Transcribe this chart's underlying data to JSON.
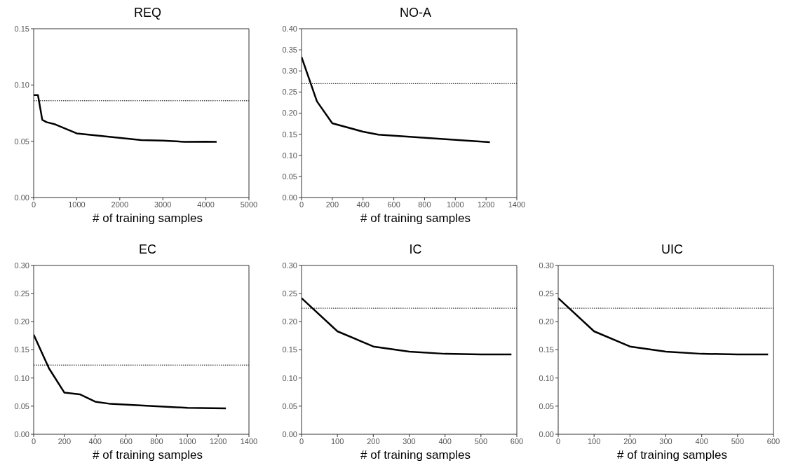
{
  "chart_data": [
    {
      "type": "line",
      "title": "REQ",
      "xlabel": "# of training samples",
      "xlim": [
        0,
        5000
      ],
      "xticks": [
        0,
        1000,
        2000,
        3000,
        4000,
        5000
      ],
      "ylim": [
        0,
        0.15
      ],
      "yticks": [
        {
          "value": 0,
          "label": "0.00"
        },
        {
          "value": 0.05,
          "label": "0.05"
        },
        {
          "value": 0.1,
          "label": "0.10"
        },
        {
          "value": 0.15,
          "label": "0.15"
        }
      ],
      "series": [
        {
          "color": "#000000",
          "x": [
            0,
            100,
            200,
            300,
            500,
            1000,
            2500,
            3000,
            3500,
            4000,
            4250
          ],
          "values": [
            0.091,
            0.091,
            0.069,
            0.067,
            0.065,
            0.057,
            0.051,
            0.0505,
            0.0495,
            0.0497,
            0.0495
          ]
        }
      ],
      "ref_lines": [
        {
          "axis": "y",
          "value": 0.086,
          "color": "#000000",
          "line_style": "dotted"
        }
      ]
    },
    {
      "type": "line",
      "title": "NO-A",
      "xlabel": "# of training samples",
      "xlim": [
        0,
        1400
      ],
      "xticks": [
        0,
        200,
        400,
        600,
        800,
        1000,
        1200,
        1400
      ],
      "ylim": [
        0,
        0.4
      ],
      "yticks": [
        {
          "value": 0,
          "label": "0.00"
        },
        {
          "value": 0.05,
          "label": "0.05"
        },
        {
          "value": 0.1,
          "label": "0.10"
        },
        {
          "value": 0.15,
          "label": "0.15"
        },
        {
          "value": 0.2,
          "label": "0.20"
        },
        {
          "value": 0.25,
          "label": "0.25"
        },
        {
          "value": 0.3,
          "label": "0.30"
        },
        {
          "value": 0.35,
          "label": "0.35"
        },
        {
          "value": 0.4,
          "label": "0.40"
        }
      ],
      "series": [
        {
          "color": "#000000",
          "x": [
            0,
            100,
            200,
            400,
            500,
            1225
          ],
          "values": [
            0.333,
            0.228,
            0.176,
            0.156,
            0.149,
            0.131
          ]
        }
      ],
      "ref_lines": [
        {
          "axis": "y",
          "value": 0.27,
          "color": "#000000",
          "line_style": "dotted"
        }
      ]
    },
    {
      "type": "line",
      "title": "EC",
      "xlabel": "# of training samples",
      "xlim": [
        0,
        1400
      ],
      "xticks": [
        0,
        200,
        400,
        600,
        800,
        1000,
        1200,
        1400
      ],
      "ylim": [
        0,
        0.3
      ],
      "yticks": [
        {
          "value": 0,
          "label": "0.00"
        },
        {
          "value": 0.05,
          "label": "0.05"
        },
        {
          "value": 0.1,
          "label": "0.10"
        },
        {
          "value": 0.15,
          "label": "0.15"
        },
        {
          "value": 0.2,
          "label": "0.20"
        },
        {
          "value": 0.25,
          "label": "0.25"
        },
        {
          "value": 0.3,
          "label": "0.30"
        }
      ],
      "series": [
        {
          "color": "#000000",
          "x": [
            0,
            100,
            200,
            300,
            400,
            500,
            1000,
            1250
          ],
          "values": [
            0.177,
            0.117,
            0.074,
            0.071,
            0.058,
            0.054,
            0.047,
            0.046
          ]
        }
      ],
      "ref_lines": [
        {
          "axis": "y",
          "value": 0.123,
          "color": "#000000",
          "line_style": "dotted"
        }
      ]
    },
    {
      "type": "line",
      "title": "IC",
      "xlabel": "# of training samples",
      "xlim": [
        0,
        600
      ],
      "xticks": [
        0,
        100,
        200,
        300,
        400,
        500,
        600
      ],
      "ylim": [
        0,
        0.3
      ],
      "yticks": [
        {
          "value": 0,
          "label": "0.00"
        },
        {
          "value": 0.05,
          "label": "0.05"
        },
        {
          "value": 0.1,
          "label": "0.10"
        },
        {
          "value": 0.15,
          "label": "0.15"
        },
        {
          "value": 0.2,
          "label": "0.20"
        },
        {
          "value": 0.25,
          "label": "0.25"
        },
        {
          "value": 0.3,
          "label": "0.30"
        }
      ],
      "series": [
        {
          "color": "#000000",
          "x": [
            0,
            100,
            200,
            300,
            400,
            500,
            585
          ],
          "values": [
            0.242,
            0.183,
            0.156,
            0.147,
            0.143,
            0.142,
            0.142
          ]
        }
      ],
      "ref_lines": [
        {
          "axis": "y",
          "value": 0.224,
          "color": "#000000",
          "line_style": "dotted"
        }
      ]
    },
    {
      "type": "line",
      "title": "UIC",
      "xlabel": "# of training samples",
      "xlim": [
        0,
        600
      ],
      "xticks": [
        0,
        100,
        200,
        300,
        400,
        500,
        600
      ],
      "ylim": [
        0,
        0.3
      ],
      "yticks": [
        {
          "value": 0,
          "label": "0.00"
        },
        {
          "value": 0.05,
          "label": "0.05"
        },
        {
          "value": 0.1,
          "label": "0.10"
        },
        {
          "value": 0.15,
          "label": "0.15"
        },
        {
          "value": 0.2,
          "label": "0.20"
        },
        {
          "value": 0.25,
          "label": "0.25"
        },
        {
          "value": 0.3,
          "label": "0.30"
        }
      ],
      "series": [
        {
          "color": "#000000",
          "x": [
            0,
            100,
            200,
            300,
            400,
            500,
            585
          ],
          "values": [
            0.242,
            0.183,
            0.156,
            0.147,
            0.143,
            0.142,
            0.142
          ]
        }
      ],
      "ref_lines": [
        {
          "axis": "y",
          "value": 0.224,
          "color": "#000000",
          "line_style": "dotted"
        }
      ]
    }
  ]
}
